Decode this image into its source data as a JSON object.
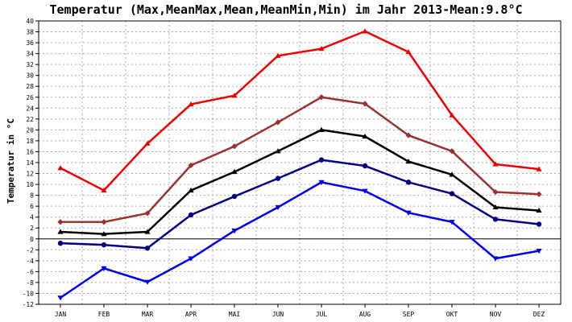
{
  "title": "Temperatur (Max,MeanMax,Mean,MeanMin,Min) im Jahr 2013-Mean:9.8°C",
  "chart_data": {
    "type": "line",
    "title": "Temperatur (Max,MeanMax,Mean,MeanMin,Min) im Jahr 2013-Mean:9.8°C",
    "xlabel": "",
    "ylabel": "Temperatur in °C",
    "categories": [
      "JAN",
      "FEB",
      "MAR",
      "APR",
      "MAI",
      "JUN",
      "JUL",
      "AUG",
      "SEP",
      "OKT",
      "NOV",
      "DEZ"
    ],
    "ylim": [
      -12,
      40
    ],
    "yticks": [
      -12,
      -10,
      -8,
      -6,
      -4,
      -2,
      0,
      2,
      4,
      6,
      8,
      10,
      12,
      14,
      16,
      18,
      20,
      22,
      24,
      26,
      28,
      30,
      32,
      34,
      36,
      38,
      40
    ],
    "grid": true,
    "legend": "none",
    "series": [
      {
        "color": "#ee0000",
        "marker": "triangle-up",
        "values": [
          13.0,
          8.9,
          17.5,
          24.7,
          26.3,
          33.6,
          34.9,
          38.1,
          34.3,
          22.7,
          13.7,
          12.8
        ]
      },
      {
        "color": "#993333",
        "marker": "diamond",
        "values": [
          3.1,
          3.1,
          4.7,
          13.5,
          17.0,
          21.4,
          26.0,
          24.8,
          19.0,
          16.1,
          8.6,
          8.2
        ]
      },
      {
        "color": "#000000",
        "marker": "triangle-up",
        "values": [
          1.3,
          0.9,
          1.3,
          8.9,
          12.3,
          16.1,
          20.0,
          18.8,
          14.2,
          11.8,
          5.8,
          5.2
        ]
      },
      {
        "color": "#000080",
        "marker": "circle",
        "values": [
          -0.8,
          -1.1,
          -1.7,
          4.4,
          7.8,
          11.1,
          14.5,
          13.4,
          10.4,
          8.3,
          3.6,
          2.7
        ]
      },
      {
        "color": "#0000ee",
        "marker": "triangle-down",
        "values": [
          -10.8,
          -5.4,
          -7.9,
          -3.6,
          1.5,
          5.8,
          10.4,
          8.8,
          4.8,
          3.1,
          -3.6,
          -2.2
        ]
      }
    ]
  }
}
